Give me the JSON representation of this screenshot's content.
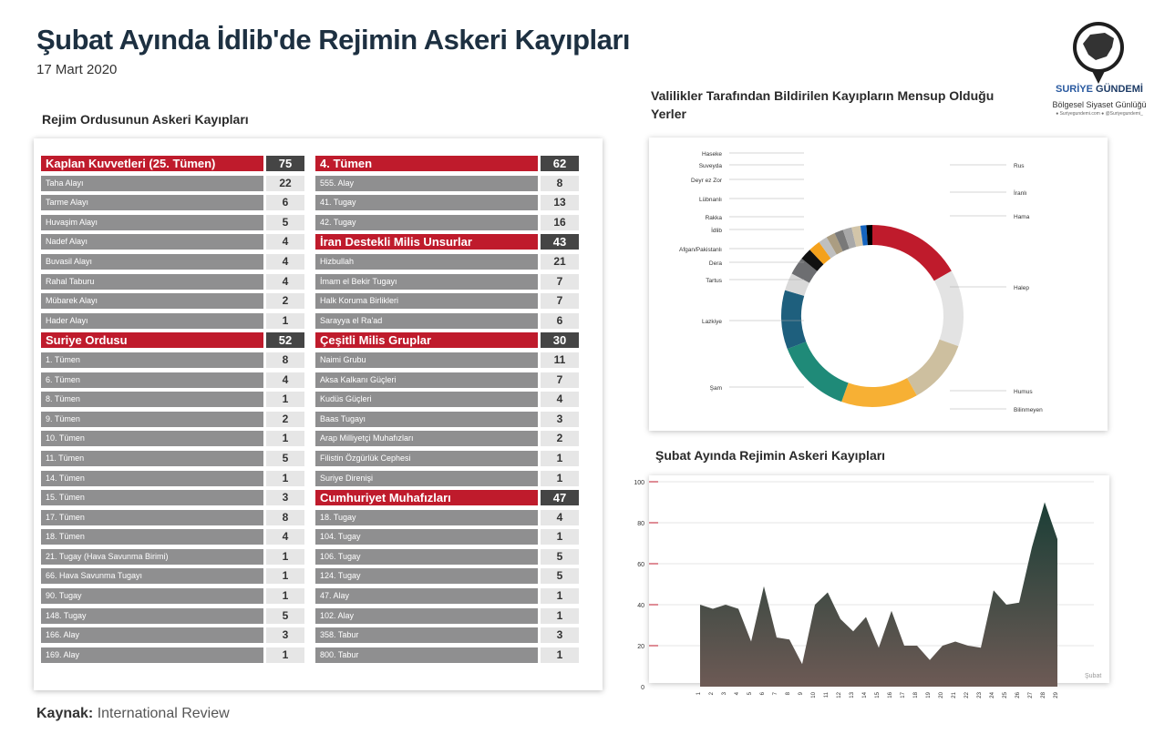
{
  "header": {
    "title": "Şubat Ayında İdlib'de Rejimin Askeri Kayıpları",
    "date": "17 Mart 2020"
  },
  "logo": {
    "name_part1": "SURİYE",
    "name_part2": "GÜNDEMİ",
    "subtitle": "Bölgesel Siyaset Günlüğü",
    "social": "● Suriyegundemi.com   ● @Suriyegundemi_"
  },
  "source": {
    "label": "Kaynak:",
    "text": "International Review"
  },
  "table_section": {
    "title": "Rejim Ordusunun Askeri Kayıpları",
    "left": [
      {
        "label": "Kaplan Kuvvetleri (25. Tümen)",
        "value": "75",
        "header": true
      },
      {
        "label": "Taha Alayı",
        "value": "22"
      },
      {
        "label": "Tarme Alayı",
        "value": "6"
      },
      {
        "label": "Huvaşim Alayı",
        "value": "5"
      },
      {
        "label": "Nadef Alayı",
        "value": "4"
      },
      {
        "label": "Buvasil Alayı",
        "value": "4"
      },
      {
        "label": "Rahal Taburu",
        "value": "4"
      },
      {
        "label": "Mübarek Alayı",
        "value": "2"
      },
      {
        "label": "Hader Alayı",
        "value": "1"
      },
      {
        "label": "Suriye Ordusu",
        "value": "52",
        "header": true
      },
      {
        "label": "1. Tümen",
        "value": "8"
      },
      {
        "label": "6. Tümen",
        "value": "4"
      },
      {
        "label": "8.  Tümen",
        "value": "1"
      },
      {
        "label": "9. Tümen",
        "value": "2"
      },
      {
        "label": "10. Tümen",
        "value": "1"
      },
      {
        "label": "11. Tümen",
        "value": "5"
      },
      {
        "label": "14. Tümen",
        "value": "1"
      },
      {
        "label": "15. Tümen",
        "value": "3"
      },
      {
        "label": "17. Tümen",
        "value": "8"
      },
      {
        "label": "18. Tümen",
        "value": "4"
      },
      {
        "label": "21. Tugay (Hava Savunma Birimi)",
        "value": "1"
      },
      {
        "label": "66. Hava Savunma Tugayı",
        "value": "1"
      },
      {
        "label": "90. Tugay",
        "value": "1"
      },
      {
        "label": "148. Tugay",
        "value": "5"
      },
      {
        "label": "166. Alay",
        "value": "3"
      },
      {
        "label": "169. Alay",
        "value": "1"
      }
    ],
    "right": [
      {
        "label": "4. Tümen",
        "value": "62",
        "header": true
      },
      {
        "label": "555. Alay",
        "value": "8"
      },
      {
        "label": "41. Tugay",
        "value": "13"
      },
      {
        "label": "42. Tugay",
        "value": "16"
      },
      {
        "label": "İran Destekli Milis Unsurlar",
        "value": "43",
        "header": true
      },
      {
        "label": "Hizbullah",
        "value": "21"
      },
      {
        "label": "İmam el Bekir Tugayı",
        "value": "7"
      },
      {
        "label": "Halk Koruma Birlikleri",
        "value": "7"
      },
      {
        "label": "Sarayya el Ra'ad",
        "value": "6"
      },
      {
        "label": "Çeşitli Milis Gruplar",
        "value": "30",
        "header": true
      },
      {
        "label": "Naimi Grubu",
        "value": "11"
      },
      {
        "label": "Aksa Kalkanı Güçleri",
        "value": "7"
      },
      {
        "label": "Kudüs Güçleri",
        "value": "4"
      },
      {
        "label": "Baas Tugayı",
        "value": "3"
      },
      {
        "label": "Arap Milliyetçi Muhafızları",
        "value": "2"
      },
      {
        "label": "Filistin Özgürlük Cephesi",
        "value": "1"
      },
      {
        "label": "Suriye Direnişi",
        "value": "1"
      },
      {
        "label": "Cumhuriyet Muhafızları",
        "value": "47",
        "header": true
      },
      {
        "label": "18. Tugay",
        "value": "4"
      },
      {
        "label": "104. Tugay",
        "value": "1"
      },
      {
        "label": "106. Tugay",
        "value": "5"
      },
      {
        "label": "124. Tugay",
        "value": "5"
      },
      {
        "label": "47. Alay",
        "value": "1"
      },
      {
        "label": "102. Alay",
        "value": "1"
      },
      {
        "label": "358. Tabur",
        "value": "3"
      },
      {
        "label": "800. Tabur",
        "value": "1"
      }
    ]
  },
  "chart_data": [
    {
      "type": "pie",
      "title": "Valilikler Tarafından Bildirilen Kayıpların Mensup Olduğu Yerler",
      "legend": "callout labels around the donut",
      "slices": [
        {
          "name": "Hama",
          "value": 16,
          "color": "#bf1b2c"
        },
        {
          "name": "Halep",
          "value": 13,
          "color": "#e3e3e3"
        },
        {
          "name": "Humus",
          "value": 11,
          "color": "#cdbf9f"
        },
        {
          "name": "Bilinmeyen",
          "value": 13,
          "color": "#f7b034"
        },
        {
          "name": "Şam",
          "value": 13,
          "color": "#1f8a78"
        },
        {
          "name": "Lazkiye",
          "value": 10,
          "color": "#1e5f7d"
        },
        {
          "name": "Tartus",
          "value": 3,
          "color": "#d9d9d9"
        },
        {
          "name": "Dera",
          "value": 3,
          "color": "#6d6e71"
        },
        {
          "name": "Afgan/Pakistanlı",
          "value": 2,
          "color": "#111111"
        },
        {
          "name": "İdlib",
          "value": 2,
          "color": "#f4a11c"
        },
        {
          "name": "Rakka",
          "value": 1.5,
          "color": "#bfbfbf"
        },
        {
          "name": "Lübnanlı",
          "value": 1.5,
          "color": "#ab9d82"
        },
        {
          "name": "Deyr ez Zor",
          "value": 1.5,
          "color": "#797979"
        },
        {
          "name": "Suveyda",
          "value": 1.5,
          "color": "#a8a8a8"
        },
        {
          "name": "Haseke",
          "value": 1.5,
          "color": "#d2c5a9"
        },
        {
          "name": "Rus",
          "value": 1,
          "color": "#1565c0"
        },
        {
          "name": "İranlı",
          "value": 1,
          "color": "#000000"
        }
      ]
    },
    {
      "type": "area",
      "title": "Şubat Ayında Rejimin Askeri Kayıpları",
      "xlabel": "Şubat",
      "ylabel": "",
      "x": [
        1,
        2,
        3,
        4,
        5,
        6,
        7,
        8,
        9,
        10,
        11,
        12,
        13,
        14,
        15,
        16,
        17,
        18,
        19,
        20,
        21,
        22,
        23,
        24,
        25,
        26,
        27,
        28,
        29
      ],
      "values": [
        40,
        38,
        40,
        38,
        22,
        49,
        24,
        23,
        11,
        40,
        46,
        33,
        27,
        34,
        19,
        37,
        20,
        20,
        13,
        20,
        22,
        20,
        19,
        47,
        40,
        41,
        68,
        90,
        72
      ],
      "ylim": [
        0,
        100
      ],
      "yticks": [
        0,
        20,
        40,
        60,
        80,
        100
      ],
      "grid": true,
      "colors": {
        "top": "#1b3e36",
        "bottom": "#6d5a55"
      }
    }
  ]
}
